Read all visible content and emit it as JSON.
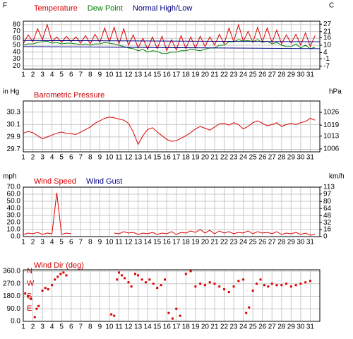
{
  "chart_data": [
    {
      "type": "line",
      "ylabel": "F",
      "y2label": "C",
      "x": [
        1,
        1.5,
        2,
        2.5,
        3,
        3.5,
        4,
        4.5,
        5,
        5.5,
        6,
        6.5,
        7,
        7.5,
        8,
        8.5,
        9,
        9.5,
        10,
        10.5,
        11,
        11.5,
        12,
        12.5,
        13,
        13.5,
        14,
        14.5,
        15,
        15.5,
        16,
        16.5,
        17,
        17.5,
        18,
        18.5,
        19,
        19.5,
        20,
        20.5,
        21,
        21.5,
        22,
        22.5,
        23,
        23.5,
        24,
        24.5,
        25,
        25.5,
        26,
        26.5,
        27,
        27.5,
        28,
        28.5,
        29,
        29.5,
        30,
        30.5,
        31,
        31.5
      ],
      "series": [
        {
          "name": "Temperature",
          "color": "#dd0000",
          "values": [
            52,
            65,
            55,
            74,
            58,
            80,
            55,
            62,
            54,
            63,
            55,
            62,
            53,
            64,
            52,
            66,
            54,
            75,
            55,
            76,
            52,
            74,
            50,
            65,
            46,
            60,
            44,
            62,
            45,
            63,
            42,
            58,
            43,
            64,
            45,
            62,
            46,
            63,
            48,
            62,
            50,
            66,
            52,
            75,
            55,
            80,
            56,
            70,
            54,
            76,
            55,
            75,
            54,
            72,
            52,
            65,
            53,
            66,
            50,
            68,
            48,
            64
          ]
        },
        {
          "name": "Dew Point",
          "color": "#008000",
          "values": [
            50,
            52,
            52,
            54,
            55,
            56,
            53,
            54,
            52,
            53,
            53,
            52,
            51,
            52,
            50,
            52,
            52,
            54,
            53,
            52,
            50,
            48,
            46,
            45,
            42,
            44,
            40,
            42,
            41,
            38,
            38,
            40,
            40,
            42,
            42,
            44,
            43,
            42,
            44,
            46,
            46,
            50,
            50,
            55,
            55,
            58,
            56,
            57,
            55,
            58,
            54,
            56,
            52,
            54,
            50,
            48,
            48,
            52,
            46,
            50,
            45,
            47
          ]
        },
        {
          "name": "Normal High/Low",
          "color": "#000080",
          "x": [
            1,
            32
          ],
          "values": [
            57,
            55
          ],
          "low": [
            48,
            45
          ]
        }
      ],
      "xlim": [
        1,
        32
      ],
      "xticks": [
        1,
        2,
        3,
        4,
        5,
        6,
        7,
        8,
        9,
        10,
        11,
        12,
        13,
        14,
        15,
        16,
        17,
        18,
        19,
        20,
        21,
        22,
        23,
        24,
        25,
        26,
        27,
        28,
        29,
        30,
        31
      ],
      "ylim": [
        15,
        85
      ],
      "yticks": [
        20,
        30,
        40,
        50,
        60,
        70,
        80
      ],
      "y2lim": [
        -9.44,
        29.44
      ],
      "y2ticks": [
        -7,
        -1,
        4,
        10,
        16,
        21,
        27
      ],
      "grid": true
    },
    {
      "type": "line",
      "title": "Barometric Pressure",
      "ylabel": "in Hg",
      "y2label": "hPa",
      "x": [
        1,
        1.5,
        2,
        2.5,
        3,
        3.5,
        4,
        4.5,
        5,
        5.5,
        6,
        6.5,
        7,
        7.5,
        8,
        8.5,
        9,
        9.5,
        10,
        10.5,
        11,
        11.5,
        12,
        12.5,
        13,
        13.5,
        14,
        14.5,
        15,
        15.5,
        16,
        16.5,
        17,
        17.5,
        18,
        18.5,
        19,
        19.5,
        20,
        20.5,
        21,
        21.5,
        22,
        22.5,
        23,
        23.5,
        24,
        24.5,
        25,
        25.5,
        26,
        26.5,
        27,
        27.5,
        28,
        28.5,
        29,
        29.5,
        30,
        30.5,
        31,
        31.5
      ],
      "series": [
        {
          "color": "#dd0000",
          "values": [
            29.96,
            29.99,
            29.97,
            29.92,
            29.87,
            29.9,
            29.93,
            29.96,
            29.98,
            29.96,
            29.95,
            29.94,
            29.98,
            30.02,
            30.06,
            30.12,
            30.16,
            30.2,
            30.22,
            30.21,
            30.19,
            30.17,
            30.12,
            29.98,
            29.78,
            29.92,
            30.02,
            30.05,
            29.98,
            29.92,
            29.86,
            29.83,
            29.84,
            29.88,
            29.92,
            29.97,
            30.03,
            30.07,
            30.04,
            30.01,
            30.06,
            30.11,
            30.12,
            30.09,
            30.13,
            30.1,
            30.03,
            30.07,
            30.13,
            30.16,
            30.12,
            30.08,
            30.1,
            30.13,
            30.07,
            30.1,
            30.12,
            30.1,
            30.13,
            30.15,
            30.2,
            30.17
          ]
        }
      ],
      "xlim": [
        1,
        32
      ],
      "xticks": [
        1,
        2,
        3,
        4,
        5,
        6,
        7,
        8,
        9,
        10,
        11,
        12,
        13,
        14,
        15,
        16,
        17,
        18,
        19,
        20,
        21,
        22,
        23,
        24,
        25,
        26,
        27,
        28,
        29,
        30,
        31
      ],
      "ylim": [
        29.66,
        30.48
      ],
      "yticks": [
        29.7,
        29.9,
        30.1,
        30.3
      ],
      "y2lim": [
        1004.4,
        1032.2
      ],
      "y2ticks": [
        1006,
        1013,
        1019,
        1026
      ],
      "grid": true
    },
    {
      "type": "line",
      "ylabel": "mph",
      "y2label": "km/h",
      "x": [
        1,
        1.5,
        2,
        2.5,
        3,
        3.5,
        4,
        4.5,
        5,
        5.5,
        6,
        6.5,
        7,
        7.5,
        8,
        8.5,
        9,
        9.5,
        10,
        10.5,
        11,
        11.5,
        12,
        12.5,
        13,
        13.5,
        14,
        14.5,
        15,
        15.5,
        16,
        16.5,
        17,
        17.5,
        18,
        18.5,
        19,
        19.5,
        20,
        20.5,
        21,
        21.5,
        22,
        22.5,
        23,
        23.5,
        24,
        24.5,
        25,
        25.5,
        26,
        26.5,
        27,
        27.5,
        28,
        28.5,
        29,
        29.5,
        30,
        30.5,
        31,
        31.5
      ],
      "series": [
        {
          "name": "Wind Speed",
          "color": "#dd0000",
          "values": [
            3,
            5,
            4,
            6,
            3,
            5,
            4,
            62,
            3,
            5,
            4,
            null,
            null,
            null,
            null,
            null,
            null,
            null,
            null,
            5,
            4,
            7,
            5,
            6,
            3,
            5,
            4,
            6,
            3,
            5,
            4,
            7,
            3,
            6,
            5,
            8,
            6,
            10,
            5,
            9,
            4,
            8,
            5,
            7,
            4,
            6,
            5,
            8,
            4,
            7,
            5,
            6,
            4,
            7,
            3,
            5,
            4,
            6,
            3,
            5,
            2,
            3
          ]
        },
        {
          "name": "Wind Gust",
          "color": "#000080",
          "values": [
            null,
            null,
            null,
            null,
            null,
            null,
            null,
            null,
            null,
            null,
            null,
            null,
            null,
            null,
            null,
            null,
            null,
            null,
            null,
            null,
            null,
            null,
            null,
            null,
            null,
            null,
            null,
            null,
            null,
            null,
            null,
            null,
            null,
            null,
            null,
            null,
            null,
            null,
            null,
            null,
            null,
            null,
            null,
            null,
            null,
            null,
            null,
            null,
            null,
            null,
            null,
            null,
            null,
            null,
            null,
            null,
            null,
            null,
            null,
            null,
            null,
            null
          ]
        }
      ],
      "xlim": [
        1,
        32
      ],
      "xticks": [
        1,
        2,
        3,
        4,
        5,
        6,
        7,
        8,
        9,
        10,
        11,
        12,
        13,
        14,
        15,
        16,
        17,
        18,
        19,
        20,
        21,
        22,
        23,
        24,
        25,
        26,
        27,
        28,
        29,
        30,
        31
      ],
      "ylim": [
        0,
        70
      ],
      "yticks": [
        {
          "value": 0,
          "label": "0.0"
        },
        {
          "value": 10,
          "label": "10.0"
        },
        {
          "value": 20,
          "label": "20.0"
        },
        {
          "value": 30,
          "label": "30.0"
        },
        {
          "value": 40,
          "label": "40.0"
        },
        {
          "value": 50,
          "label": "50.0"
        },
        {
          "value": 60,
          "label": "60.0"
        },
        {
          "value": 70,
          "label": "70.0"
        }
      ],
      "y2lim": [
        0,
        112.65
      ],
      "y2ticks": [
        0,
        16,
        32,
        48,
        64,
        80,
        97,
        113
      ],
      "grid": true
    },
    {
      "type": "scatter",
      "title": "Wind Dir (deg)",
      "color": "#dd0000",
      "x": [
        1.2,
        1.5,
        1.8,
        2.2,
        2.4,
        2.6,
        3.0,
        3.3,
        3.6,
        4.0,
        4.3,
        4.6,
        4.9,
        5.2,
        5.5,
        10.2,
        10.5,
        10.8,
        11.0,
        11.3,
        11.6,
        12.0,
        12.3,
        12.7,
        13.0,
        13.4,
        13.8,
        14.2,
        14.6,
        15.0,
        15.4,
        15.8,
        16.2,
        16.6,
        17.0,
        17.4,
        18.0,
        18.5,
        19.0,
        19.5,
        20.0,
        20.5,
        21.0,
        21.5,
        22.0,
        22.5,
        23.0,
        23.5,
        24.0,
        24.3,
        24.6,
        25.0,
        25.4,
        25.8,
        26.2,
        26.6,
        27.0,
        27.5,
        28.0,
        28.5,
        29.0,
        29.5,
        30.0,
        30.5,
        31.0
      ],
      "values": [
        200,
        180,
        160,
        30,
        90,
        110,
        220,
        240,
        230,
        260,
        300,
        320,
        340,
        350,
        330,
        50,
        40,
        300,
        350,
        330,
        310,
        280,
        250,
        340,
        330,
        300,
        280,
        300,
        270,
        240,
        260,
        300,
        60,
        20,
        90,
        40,
        340,
        360,
        250,
        270,
        260,
        280,
        270,
        250,
        230,
        210,
        250,
        290,
        300,
        60,
        100,
        220,
        270,
        300,
        260,
        250,
        270,
        260,
        260,
        270,
        250,
        260,
        270,
        280,
        290
      ],
      "compass": [
        {
          "value": 360,
          "label": "N"
        },
        {
          "value": 270,
          "label": "W"
        },
        {
          "value": 180,
          "label": "S"
        },
        {
          "value": 90,
          "label": "E"
        }
      ],
      "xlim": [
        1,
        32
      ],
      "xticks": [
        1,
        2,
        3,
        4,
        5,
        6,
        7,
        8,
        9,
        10,
        11,
        12,
        13,
        14,
        15,
        16,
        17,
        18,
        19,
        20,
        21,
        22,
        23,
        24,
        25,
        26,
        27,
        28,
        29,
        30,
        31
      ],
      "ylim": [
        0,
        370
      ],
      "yticks": [
        {
          "value": 0,
          "label": "0.0"
        },
        {
          "value": 90,
          "label": "90.0"
        },
        {
          "value": 180,
          "label": "180.0"
        },
        {
          "value": 270,
          "label": "270.0"
        },
        {
          "value": 360,
          "label": "360.0"
        }
      ],
      "grid": true
    }
  ]
}
